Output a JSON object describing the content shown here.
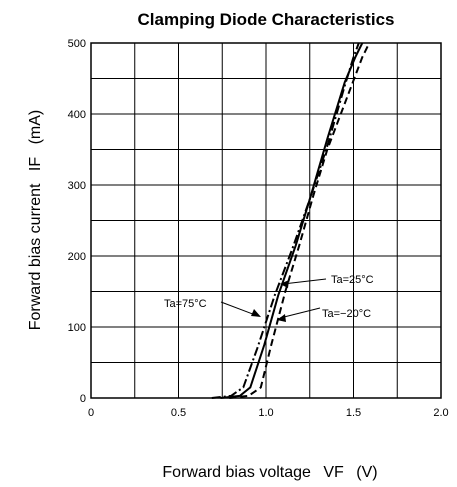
{
  "chart_data": {
    "type": "line",
    "title": "Clamping Diode Characteristics",
    "xlabel": "Forward bias voltage",
    "xsymbol": "VF",
    "xunit": "(V)",
    "ylabel": "Forward bias current",
    "ysymbol": "IF",
    "yunit": "(mA)",
    "xlim": [
      0,
      2.0
    ],
    "ylim": [
      0,
      500
    ],
    "x_ticks": [
      "0",
      "0.5",
      "1.0",
      "1.5",
      "2.0"
    ],
    "y_ticks": [
      "0",
      "100",
      "200",
      "300",
      "400",
      "500"
    ],
    "grid": true,
    "series": [
      {
        "name": "Ta=75°C",
        "style": "dash-dot",
        "points": [
          [
            0.69,
            0
          ],
          [
            0.8,
            3
          ],
          [
            0.87,
            15
          ],
          [
            0.95,
            70
          ],
          [
            1.05,
            145
          ],
          [
            1.15,
            210
          ],
          [
            1.25,
            280
          ],
          [
            1.35,
            355
          ],
          [
            1.45,
            440
          ],
          [
            1.5,
            480
          ],
          [
            1.53,
            500
          ]
        ]
      },
      {
        "name": "Ta=25°C",
        "style": "solid",
        "points": [
          [
            0.74,
            0
          ],
          [
            0.85,
            3
          ],
          [
            0.91,
            15
          ],
          [
            0.99,
            75
          ],
          [
            1.07,
            145
          ],
          [
            1.17,
            215
          ],
          [
            1.25,
            280
          ],
          [
            1.35,
            365
          ],
          [
            1.45,
            445
          ],
          [
            1.51,
            480
          ],
          [
            1.55,
            500
          ]
        ]
      },
      {
        "name": "Ta=-20°C",
        "style": "dashed",
        "points": [
          [
            0.79,
            0
          ],
          [
            0.9,
            3
          ],
          [
            0.97,
            15
          ],
          [
            1.03,
            75
          ],
          [
            1.11,
            150
          ],
          [
            1.19,
            215
          ],
          [
            1.27,
            285
          ],
          [
            1.35,
            350
          ],
          [
            1.45,
            415
          ],
          [
            1.55,
            480
          ],
          [
            1.59,
            500
          ]
        ]
      }
    ],
    "annotations": [
      {
        "text": "Ta=25°C",
        "target": [
          1.06,
          160
        ]
      },
      {
        "text": "Ta=75°C",
        "target": [
          0.99,
          118
        ]
      },
      {
        "text": "Ta=−20°C",
        "target": [
          1.04,
          110
        ]
      }
    ]
  }
}
